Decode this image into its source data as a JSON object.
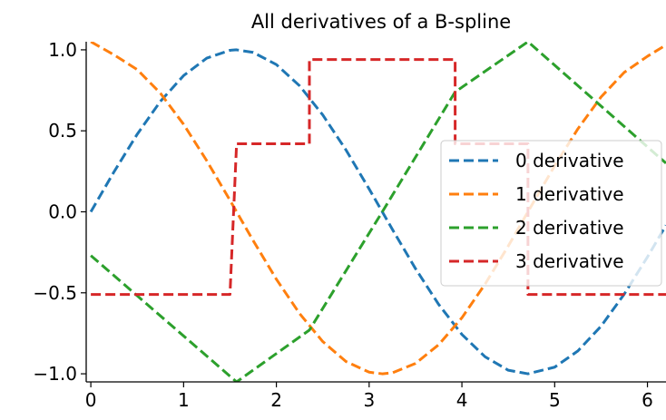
{
  "chart_data": {
    "type": "line",
    "title": "All derivatives of a B-spline",
    "xlabel": "",
    "ylabel": "",
    "xlim": [
      -0.05,
      6.2
    ],
    "ylim": [
      -1.05,
      1.05
    ],
    "x_ticks": [
      0,
      1,
      2,
      3,
      4,
      5,
      6
    ],
    "x_tick_labels": [
      "0",
      "1",
      "2",
      "3",
      "4",
      "5",
      "6"
    ],
    "y_ticks": [
      1.0,
      0.5,
      0.0,
      -0.5,
      -1.0
    ],
    "y_tick_labels": [
      "1.0",
      "0.5",
      "0.0",
      "−0.5",
      "−1.0"
    ],
    "grid": false,
    "legend_position": "center-right",
    "series": [
      {
        "name": "0 derivative",
        "color": "#1f77b4",
        "x": [
          0,
          0.25,
          0.5,
          0.75,
          1.0,
          1.25,
          1.5,
          1.571,
          1.75,
          2.0,
          2.25,
          2.5,
          2.75,
          3.0,
          3.142,
          3.25,
          3.5,
          3.75,
          4.0,
          4.25,
          4.5,
          4.712,
          5.0,
          5.25,
          5.5,
          5.75,
          6.0,
          6.2
        ],
        "y": [
          0.0,
          0.247,
          0.479,
          0.682,
          0.841,
          0.949,
          0.997,
          1.0,
          0.984,
          0.909,
          0.778,
          0.598,
          0.382,
          0.141,
          0.0,
          -0.108,
          -0.351,
          -0.572,
          -0.757,
          -0.895,
          -0.978,
          -1.0,
          -0.959,
          -0.859,
          -0.706,
          -0.508,
          -0.279,
          -0.083
        ]
      },
      {
        "name": "1 derivative",
        "color": "#ff7f0e",
        "x": [
          0,
          0.25,
          0.5,
          0.75,
          1.0,
          1.25,
          1.5,
          1.75,
          2.0,
          2.25,
          2.5,
          2.75,
          3.0,
          3.142,
          3.25,
          3.5,
          3.75,
          4.0,
          4.25,
          4.5,
          4.75,
          5.0,
          5.25,
          5.5,
          5.75,
          6.0,
          6.2
        ],
        "y": [
          1.05,
          0.969,
          0.878,
          0.732,
          0.54,
          0.315,
          0.071,
          -0.178,
          -0.416,
          -0.628,
          -0.801,
          -0.924,
          -0.99,
          -1.0,
          -0.994,
          -0.936,
          -0.82,
          -0.654,
          -0.446,
          -0.211,
          0.038,
          0.284,
          0.512,
          0.709,
          0.861,
          0.96,
          1.03
        ]
      },
      {
        "name": "2 derivative",
        "color": "#2ca02c",
        "x": [
          0,
          1.571,
          2.356,
          3.142,
          3.927,
          4.712,
          6.2
        ],
        "y": [
          -0.27,
          -1.05,
          -0.73,
          0.0,
          0.74,
          1.05,
          0.3
        ]
      },
      {
        "name": "3 derivative",
        "color": "#d62728",
        "x": [
          0,
          1.5,
          1.571,
          2.356,
          2.356,
          3.927,
          3.927,
          4.712,
          4.712,
          6.2
        ],
        "y": [
          -0.51,
          -0.51,
          0.42,
          0.42,
          0.94,
          0.94,
          0.42,
          0.42,
          -0.51,
          -0.51
        ]
      }
    ]
  }
}
